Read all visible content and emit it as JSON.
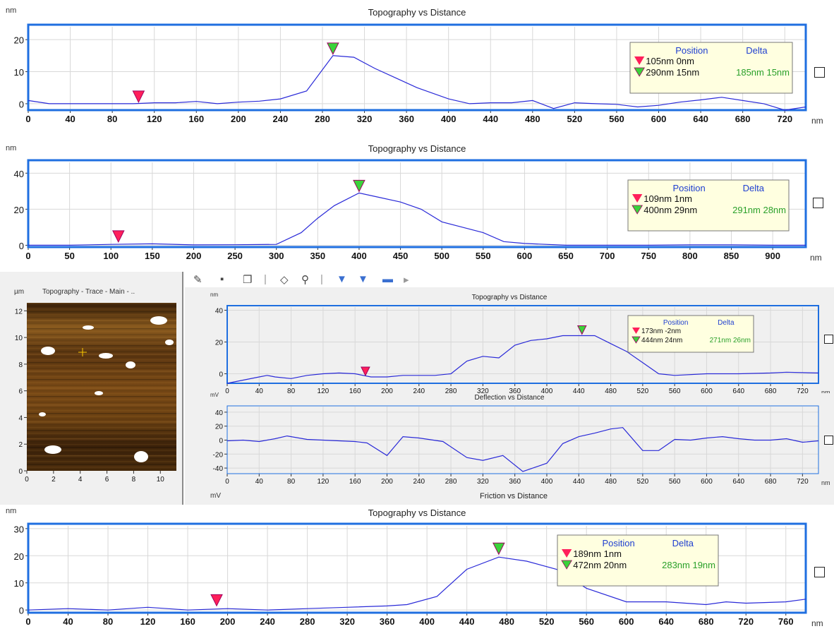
{
  "charts": [
    {
      "type": "line",
      "title": "Topography  vs  Distance",
      "unit_y": "nm",
      "unit_x": "nm",
      "x_ticks": [
        "0",
        "40",
        "80",
        "120",
        "160",
        "200",
        "240",
        "280",
        "320",
        "360",
        "400",
        "440",
        "480",
        "520",
        "560",
        "600",
        "640",
        "680",
        "720"
      ],
      "y_ticks": [
        "0",
        "10",
        "20"
      ],
      "xlim": [
        0,
        740
      ],
      "ylim": [
        -2,
        24
      ],
      "color": "#2a2ad8",
      "x": [
        0,
        20,
        40,
        60,
        80,
        100,
        120,
        140,
        160,
        180,
        200,
        220,
        240,
        265,
        290,
        310,
        330,
        350,
        370,
        400,
        420,
        440,
        460,
        480,
        500,
        520,
        540,
        560,
        580,
        600,
        620,
        640,
        660,
        680,
        700,
        720,
        740
      ],
      "y": [
        1,
        0,
        0,
        0,
        0,
        0,
        0.3,
        0.3,
        0.7,
        0,
        0.5,
        0.8,
        1.5,
        4,
        15,
        14.5,
        11,
        8,
        5,
        1.5,
        0,
        0.3,
        0.3,
        1,
        -1.5,
        0.3,
        0,
        -0.2,
        -1,
        -0.5,
        0.5,
        1.2,
        2,
        1,
        0,
        -2,
        -1
      ],
      "markers": [
        {
          "type": "red",
          "x": 105,
          "y": 0
        },
        {
          "type": "green",
          "x": 290,
          "y": 15
        }
      ],
      "legend": {
        "header_position": "Position",
        "header_delta": "Delta",
        "row1": "105nm   0nm",
        "row2": "290nm 15nm",
        "delta": "185nm 15nm"
      }
    },
    {
      "type": "line",
      "title": "Topography  vs  Distance",
      "unit_y": "nm",
      "unit_x": "nm",
      "x_ticks": [
        "0",
        "50",
        "100",
        "150",
        "200",
        "250",
        "300",
        "350",
        "400",
        "450",
        "500",
        "550",
        "600",
        "650",
        "700",
        "750",
        "800",
        "850",
        "900"
      ],
      "y_ticks": [
        "0",
        "20",
        "40"
      ],
      "xlim": [
        0,
        940
      ],
      "ylim": [
        -1,
        46
      ],
      "color": "#2a2ad8",
      "x": [
        0,
        50,
        100,
        150,
        200,
        250,
        300,
        330,
        350,
        370,
        400,
        420,
        450,
        475,
        500,
        525,
        550,
        575,
        600,
        650,
        700,
        750,
        800,
        850,
        900,
        940
      ],
      "y": [
        0,
        0,
        0.5,
        0.8,
        0.2,
        0.3,
        0.5,
        7,
        15,
        22,
        29,
        27,
        24,
        20,
        13,
        10,
        7,
        2,
        1,
        0,
        0,
        0,
        0.2,
        0.2,
        0,
        0
      ],
      "markers": [
        {
          "type": "red",
          "x": 109,
          "y": 1
        },
        {
          "type": "green",
          "x": 400,
          "y": 29
        }
      ],
      "legend": {
        "header_position": "Position",
        "header_delta": "Delta",
        "row1": "109nm   1nm",
        "row2": "400nm 29nm",
        "delta": "291nm 28nm"
      }
    },
    {
      "type": "line",
      "title": "Topography  vs  Distance",
      "unit_y": "nm",
      "unit_x": "nm",
      "x_ticks": [
        "0",
        "40",
        "80",
        "120",
        "160",
        "200",
        "240",
        "280",
        "320",
        "360",
        "400",
        "440",
        "480",
        "520",
        "560",
        "600",
        "640",
        "680",
        "720"
      ],
      "y_ticks": [
        "0",
        "20",
        "40"
      ],
      "xlim": [
        0,
        740
      ],
      "ylim": [
        -6,
        42
      ],
      "color": "#2a2ad8",
      "x": [
        0,
        20,
        40,
        50,
        60,
        80,
        100,
        120,
        140,
        160,
        180,
        200,
        220,
        240,
        260,
        280,
        300,
        320,
        340,
        360,
        380,
        400,
        420,
        440,
        460,
        480,
        500,
        520,
        540,
        560,
        600,
        640,
        680,
        700,
        740
      ],
      "y": [
        -6,
        -4,
        -2,
        -1,
        -2,
        -3,
        -1,
        0,
        0.5,
        0,
        -2,
        -2,
        -1,
        -1,
        -1,
        0,
        8,
        11,
        10,
        18,
        21,
        22,
        24,
        24,
        24,
        19,
        14,
        7,
        0,
        -1,
        0,
        0,
        0.5,
        1,
        0.5
      ],
      "markers": [
        {
          "type": "red",
          "x": 173,
          "y": -2
        },
        {
          "type": "green",
          "x": 444,
          "y": 24
        }
      ],
      "legend": {
        "header_position": "Position",
        "header_delta": "Delta",
        "row1": "173nm  -2nm",
        "row2": "444nm 24nm",
        "delta": "271nm 26nm"
      }
    },
    {
      "type": "line",
      "title": "Deflection  vs  Distance",
      "unit_y": "mV",
      "unit_x": "nm",
      "x_ticks": [
        "0",
        "40",
        "80",
        "120",
        "160",
        "200",
        "240",
        "280",
        "320",
        "360",
        "400",
        "440",
        "480",
        "520",
        "560",
        "600",
        "640",
        "680",
        "720"
      ],
      "y_ticks": [
        "-40",
        "-20",
        "0",
        "20",
        "40"
      ],
      "xlim": [
        0,
        740
      ],
      "ylim": [
        -48,
        48
      ],
      "color": "#2a2ad8",
      "x": [
        0,
        20,
        40,
        60,
        75,
        100,
        120,
        140,
        160,
        175,
        200,
        220,
        240,
        270,
        300,
        320,
        345,
        370,
        400,
        420,
        440,
        460,
        480,
        495,
        520,
        540,
        560,
        580,
        600,
        620,
        640,
        660,
        680,
        700,
        720,
        740
      ],
      "y": [
        -1,
        0,
        -2,
        2,
        6,
        1,
        0,
        -1,
        -2,
        -4,
        -22,
        5,
        3,
        -2,
        -25,
        -29,
        -22,
        -45,
        -33,
        -5,
        5,
        10,
        16,
        18,
        -15,
        -15,
        1,
        0,
        3,
        5,
        2,
        0,
        0,
        2,
        -3,
        -1
      ],
      "markers": [],
      "legend": null
    },
    {
      "type": "line",
      "title": "Topography  vs  Distance",
      "unit_y": "nm",
      "unit_x": "nm",
      "x_ticks": [
        "0",
        "40",
        "80",
        "120",
        "160",
        "200",
        "240",
        "280",
        "320",
        "360",
        "400",
        "440",
        "480",
        "520",
        "560",
        "600",
        "640",
        "680",
        "720",
        "760"
      ],
      "y_ticks": [
        "0",
        "10",
        "20",
        "30"
      ],
      "xlim": [
        0,
        780
      ],
      "ylim": [
        -1,
        31
      ],
      "color": "#2a2ad8",
      "x": [
        0,
        40,
        80,
        120,
        160,
        200,
        240,
        280,
        320,
        360,
        380,
        410,
        440,
        472,
        500,
        530,
        560,
        600,
        640,
        680,
        700,
        720,
        760,
        780
      ],
      "y": [
        0,
        0.5,
        0,
        1,
        0,
        0.5,
        0,
        0.5,
        1,
        1.5,
        2,
        5,
        15,
        19.5,
        18,
        15,
        8,
        3,
        3,
        2,
        3,
        2.5,
        3,
        4
      ],
      "markers": [
        {
          "type": "red",
          "x": 189,
          "y": 1
        },
        {
          "type": "green",
          "x": 472,
          "y": 20
        }
      ],
      "legend": {
        "header_position": "Position",
        "header_delta": "Delta",
        "row1": "189nm   1nm",
        "row2": "472nm 20nm",
        "delta": "283nm 19nm"
      }
    }
  ],
  "friction_title": "Friction  vs  Distance",
  "friction_unit_y": "mV",
  "image_panel": {
    "title": "Topography - Trace - Main - ..",
    "unit": "µm",
    "x_ticks": [
      "0",
      "2",
      "4",
      "6",
      "8",
      "10"
    ],
    "y_ticks": [
      "0",
      "2",
      "4",
      "6",
      "8",
      "10",
      "12"
    ]
  },
  "colors": {
    "frame": "#1f6fe0",
    "line": "#2a2ad8",
    "legend_bg": "#ffffe0",
    "legend_header": "#1f3fd0",
    "delta_text": "#2aa02a",
    "marker_red": "#ff1f5a",
    "marker_green": "#3ad33a"
  }
}
